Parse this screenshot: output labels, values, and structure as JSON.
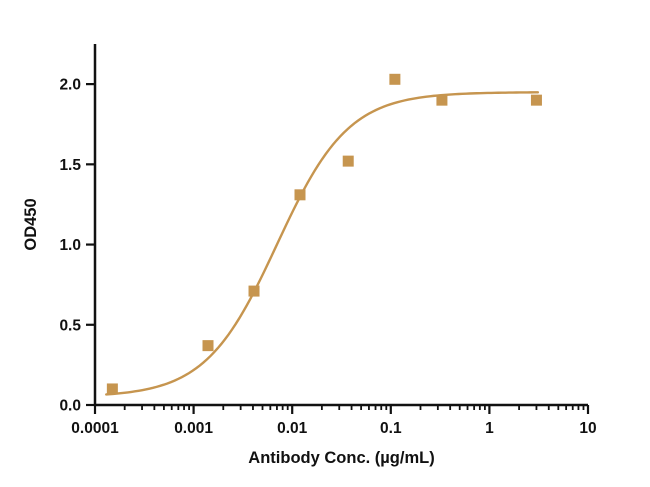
{
  "chart_data": {
    "type": "scatter",
    "title": "",
    "xlabel": "Antibody Conc. (µg/mL)",
    "ylabel": "OD450",
    "xscale": "log",
    "grid": false,
    "legend": "none",
    "xlim": [
      0.0001,
      10
    ],
    "ylim": [
      0,
      2.25
    ],
    "x_ticks": [
      {
        "v": 0.0001,
        "label": "0.0001"
      },
      {
        "v": 0.001,
        "label": "0.001"
      },
      {
        "v": 0.01,
        "label": "0.01"
      },
      {
        "v": 0.1,
        "label": "0.1"
      },
      {
        "v": 1,
        "label": "1"
      },
      {
        "v": 10,
        "label": "10"
      }
    ],
    "y_ticks": [
      {
        "v": 0.0,
        "label": "0.0"
      },
      {
        "v": 0.5,
        "label": "0.5"
      },
      {
        "v": 1.0,
        "label": "1.0"
      },
      {
        "v": 1.5,
        "label": "1.5"
      },
      {
        "v": 2.0,
        "label": "2.0"
      }
    ],
    "points": [
      {
        "x": 0.00015,
        "y": 0.1
      },
      {
        "x": 0.0014,
        "y": 0.37
      },
      {
        "x": 0.0041,
        "y": 0.71
      },
      {
        "x": 0.012,
        "y": 1.31
      },
      {
        "x": 0.037,
        "y": 1.52
      },
      {
        "x": 0.11,
        "y": 2.03
      },
      {
        "x": 0.33,
        "y": 1.9
      },
      {
        "x": 3.0,
        "y": 1.9
      }
    ],
    "fit": {
      "model": "4PL",
      "bottom": 0.05,
      "top": 1.95,
      "ec50": 0.007,
      "hill": 1.2,
      "x_range": [
        0.00013,
        3.1
      ]
    },
    "marker": "square",
    "marker_size": 11,
    "colors": {
      "series": "#c6954f",
      "axis": "#111111",
      "background": "#ffffff"
    }
  }
}
